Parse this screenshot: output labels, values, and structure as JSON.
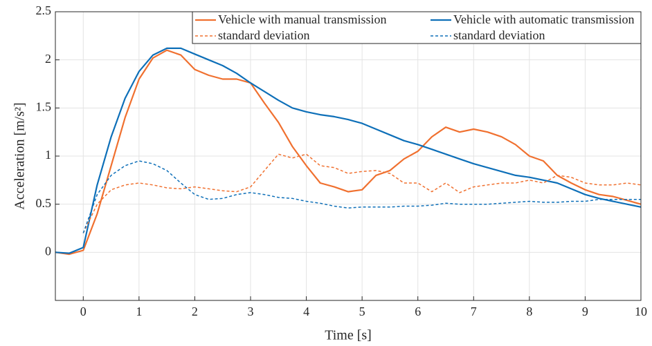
{
  "chart_data": {
    "type": "line",
    "xlabel": "Time [s]",
    "ylabel": "Acceleration [m/s²]",
    "xlim": [
      -0.5,
      10
    ],
    "ylim": [
      -0.5,
      2.5
    ],
    "xticks": [
      0,
      1,
      2,
      3,
      4,
      5,
      6,
      7,
      8,
      9,
      10
    ],
    "yticks": [
      0,
      0.5,
      1,
      1.5,
      2,
      2.5
    ],
    "grid": true,
    "legend": "top-right",
    "x": [
      -0.5,
      -0.25,
      0,
      0.25,
      0.5,
      0.75,
      1,
      1.25,
      1.5,
      1.75,
      2,
      2.25,
      2.5,
      2.75,
      3,
      3.25,
      3.5,
      3.75,
      4,
      4.25,
      4.5,
      4.75,
      5,
      5.25,
      5.5,
      5.75,
      6,
      6.25,
      6.5,
      6.75,
      7,
      7.25,
      7.5,
      7.75,
      8,
      8.25,
      8.5,
      8.75,
      9,
      9.25,
      9.5,
      9.75,
      10
    ],
    "series": [
      {
        "name": "Vehicle with manual transmission",
        "color": "#f0702f",
        "dashed": false,
        "values": [
          0,
          -0.02,
          0.02,
          0.4,
          0.9,
          1.4,
          1.8,
          2.02,
          2.1,
          2.05,
          1.9,
          1.84,
          1.8,
          1.8,
          1.76,
          1.55,
          1.35,
          1.1,
          0.9,
          0.72,
          0.68,
          0.63,
          0.65,
          0.8,
          0.85,
          0.97,
          1.05,
          1.2,
          1.3,
          1.25,
          1.28,
          1.25,
          1.2,
          1.12,
          1.0,
          0.95,
          0.8,
          0.72,
          0.65,
          0.6,
          0.58,
          0.54,
          0.5
        ]
      },
      {
        "name": "Vehicle with automatic transmission",
        "color": "#0d6fb8",
        "dashed": false,
        "values": [
          0,
          -0.01,
          0.05,
          0.7,
          1.2,
          1.6,
          1.88,
          2.05,
          2.12,
          2.12,
          2.06,
          2.0,
          1.94,
          1.86,
          1.76,
          1.67,
          1.58,
          1.5,
          1.46,
          1.43,
          1.41,
          1.38,
          1.34,
          1.28,
          1.22,
          1.16,
          1.12,
          1.07,
          1.02,
          0.97,
          0.92,
          0.88,
          0.84,
          0.8,
          0.78,
          0.75,
          0.72,
          0.66,
          0.6,
          0.56,
          0.53,
          0.5,
          0.47
        ]
      },
      {
        "name": "standard deviation",
        "color": "#f0702f",
        "dashed": true,
        "values": [
          null,
          null,
          0.2,
          0.5,
          0.65,
          0.7,
          0.72,
          0.7,
          0.67,
          0.66,
          0.68,
          0.66,
          0.64,
          0.63,
          0.68,
          0.85,
          1.02,
          0.98,
          1.02,
          0.9,
          0.88,
          0.82,
          0.84,
          0.85,
          0.82,
          0.72,
          0.72,
          0.63,
          0.72,
          0.62,
          0.68,
          0.7,
          0.72,
          0.72,
          0.75,
          0.72,
          0.8,
          0.78,
          0.72,
          0.7,
          0.7,
          0.72,
          0.7
        ]
      },
      {
        "name": "standard deviation",
        "color": "#0d6fb8",
        "dashed": true,
        "values": [
          null,
          null,
          0.2,
          0.6,
          0.8,
          0.9,
          0.95,
          0.92,
          0.85,
          0.72,
          0.6,
          0.55,
          0.56,
          0.6,
          0.62,
          0.6,
          0.57,
          0.56,
          0.53,
          0.51,
          0.48,
          0.46,
          0.47,
          0.47,
          0.47,
          0.48,
          0.48,
          0.49,
          0.51,
          0.5,
          0.5,
          0.5,
          0.51,
          0.52,
          0.53,
          0.52,
          0.52,
          0.53,
          0.53,
          0.55,
          0.55,
          0.55,
          0.55
        ]
      }
    ]
  }
}
